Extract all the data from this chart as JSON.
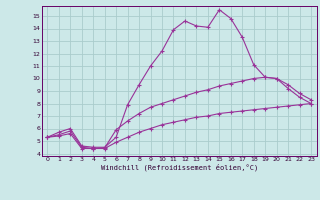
{
  "xlabel": "Windchill (Refroidissement éolien,°C)",
  "bg_color": "#cce8e8",
  "grid_color": "#aacccc",
  "line_color": "#993399",
  "xlim": [
    -0.5,
    23.5
  ],
  "ylim": [
    3.8,
    15.8
  ],
  "xticks": [
    0,
    1,
    2,
    3,
    4,
    5,
    6,
    7,
    8,
    9,
    10,
    11,
    12,
    13,
    14,
    15,
    16,
    17,
    18,
    19,
    20,
    21,
    22,
    23
  ],
  "yticks": [
    4,
    5,
    6,
    7,
    8,
    9,
    10,
    11,
    12,
    13,
    14,
    15
  ],
  "line1_x": [
    0,
    1,
    2,
    3,
    4,
    5,
    6,
    7,
    8,
    9,
    10,
    11,
    12,
    13,
    14,
    15,
    16,
    17,
    18,
    19,
    20,
    21,
    22,
    23
  ],
  "line1_y": [
    5.3,
    5.7,
    6.0,
    4.6,
    4.5,
    4.5,
    5.3,
    7.9,
    9.5,
    11.0,
    12.2,
    13.9,
    14.6,
    14.2,
    14.1,
    15.5,
    14.8,
    13.3,
    11.1,
    10.1,
    10.0,
    9.2,
    8.5,
    8.0
  ],
  "line2_x": [
    0,
    1,
    2,
    3,
    4,
    5,
    6,
    7,
    8,
    9,
    10,
    11,
    12,
    13,
    14,
    15,
    16,
    17,
    18,
    19,
    20,
    21,
    22,
    23
  ],
  "line2_y": [
    5.3,
    5.5,
    5.8,
    4.5,
    4.4,
    4.45,
    5.9,
    6.6,
    7.2,
    7.7,
    8.0,
    8.3,
    8.6,
    8.9,
    9.1,
    9.4,
    9.6,
    9.8,
    10.0,
    10.1,
    10.0,
    9.5,
    8.8,
    8.3
  ],
  "line3_x": [
    0,
    1,
    2,
    3,
    4,
    5,
    6,
    7,
    8,
    9,
    10,
    11,
    12,
    13,
    14,
    15,
    16,
    17,
    18,
    19,
    20,
    21,
    22,
    23
  ],
  "line3_y": [
    5.3,
    5.4,
    5.6,
    4.4,
    4.4,
    4.4,
    4.9,
    5.3,
    5.7,
    6.0,
    6.3,
    6.5,
    6.7,
    6.9,
    7.0,
    7.2,
    7.3,
    7.4,
    7.5,
    7.6,
    7.7,
    7.8,
    7.9,
    8.0
  ]
}
